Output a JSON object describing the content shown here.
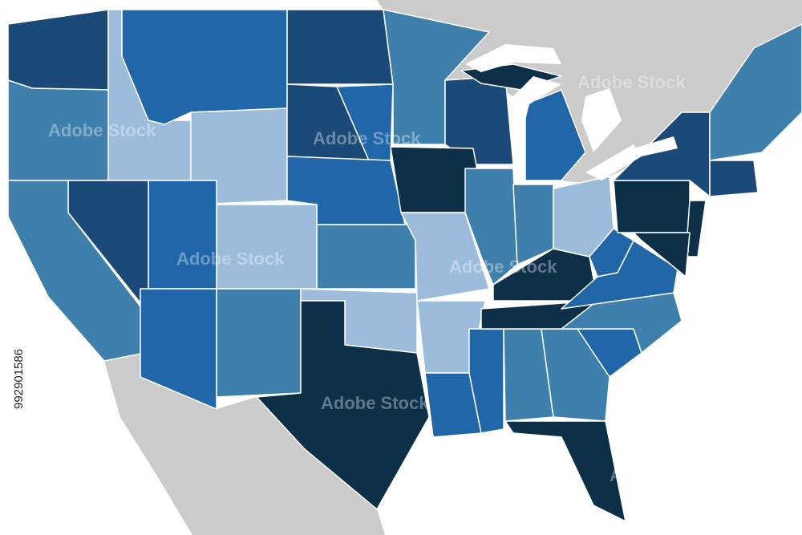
{
  "watermark": {
    "brand": "Adobe Stock",
    "id": "992901586"
  }
}
